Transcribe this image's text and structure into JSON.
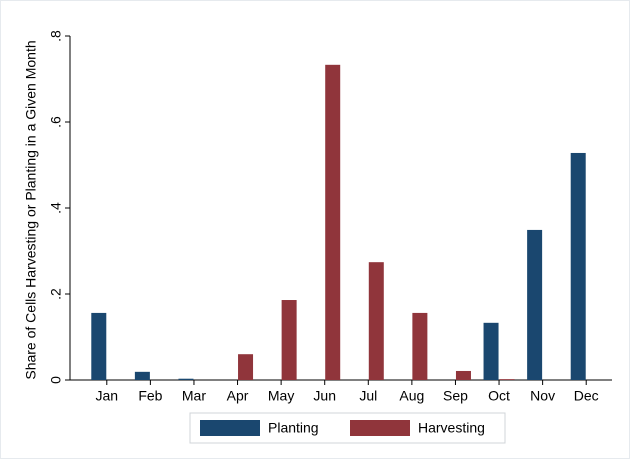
{
  "chart_data": {
    "type": "bar",
    "ylabel": "Share of Cells Harvesting or Planting in a Given Month",
    "categories": [
      "Jan",
      "Feb",
      "Mar",
      "Apr",
      "May",
      "Jun",
      "Jul",
      "Aug",
      "Sep",
      "Oct",
      "Nov",
      "Dec"
    ],
    "series": [
      {
        "name": "Planting",
        "color": "#1a476f",
        "values": [
          0.156,
          0.019,
          0.003,
          0,
          0,
          0,
          0,
          0,
          0,
          0.133,
          0.349,
          0.528
        ]
      },
      {
        "name": "Harvesting",
        "color": "#90353b",
        "values": [
          0,
          0,
          0,
          0.06,
          0.186,
          0.733,
          0.274,
          0.156,
          0.021,
          0.002,
          0,
          0
        ]
      }
    ],
    "ylim": [
      0,
      0.8
    ],
    "yticks": [
      0,
      {
        "value": 0.2,
        "label": ".2"
      },
      {
        "value": 0.4,
        "label": ".4"
      },
      {
        "value": 0.6,
        "label": ".6"
      },
      {
        "value": 0.8,
        "label": ".8"
      }
    ],
    "grid": false,
    "legend": "bottom"
  }
}
